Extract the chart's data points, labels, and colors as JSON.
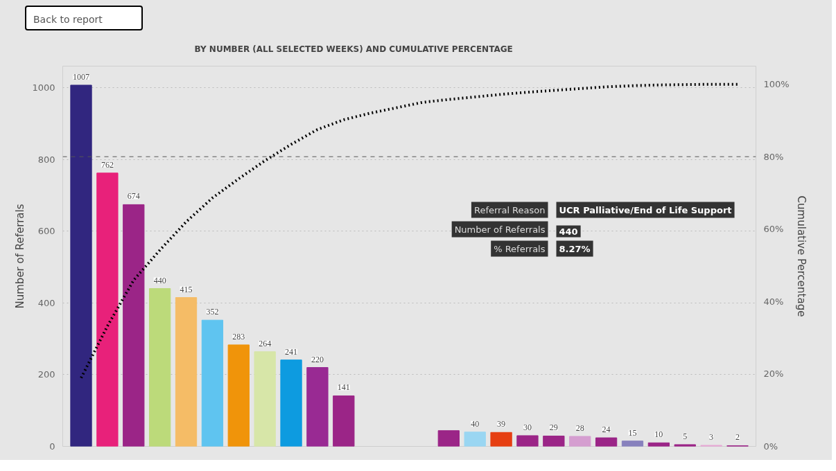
{
  "chart_data": {
    "type": "bar",
    "title": "BY NUMBER (ALL SELECTED WEEKS) AND CUMULATIVE PERCENTAGE",
    "ylabel": "Number of Referrals",
    "y2label": "Cumulative Percentage",
    "categories": [
      null,
      null,
      null,
      null,
      null,
      null,
      null,
      null,
      null,
      null,
      null,
      null,
      null,
      null,
      null,
      null,
      null,
      null,
      null,
      null,
      null,
      null,
      null,
      null,
      null,
      null
    ],
    "series": [
      {
        "colors": [
          "#31267f",
          "#e8217a",
          "#9b2587",
          "#bcda7a",
          "#f5bc66",
          "#5fc4f0",
          "#f0940a",
          "#d7e6a8",
          "#0d9be0",
          "#992a93",
          "#9b2587",
          "#9b2587",
          "#9b2587",
          "#9b2587",
          "#9b2587",
          "#9ad6f2",
          "#e63f12",
          "#9b2587",
          "#9b2587",
          "#d59ed0",
          "#9b2587",
          "#8781bd",
          "#9b2587",
          "#9b2587",
          "#e6a8d4",
          "#9b2587"
        ],
        "values": [
          1007,
          762,
          674,
          440,
          415,
          352,
          283,
          264,
          241,
          220,
          141,
          null,
          null,
          null,
          44,
          40,
          39,
          30,
          29,
          28,
          24,
          15,
          10,
          5,
          3,
          2
        ],
        "value_labels": [
          "1007",
          "762",
          "674",
          "440",
          "415",
          "352",
          "283",
          "264",
          "241",
          "220",
          "141",
          null,
          null,
          null,
          null,
          "40",
          "39",
          "30",
          "29",
          "28",
          "24",
          "15",
          "10",
          "5",
          "3",
          "2"
        ]
      },
      {
        "type": "line",
        "axis": "y2",
        "color": "#000000",
        "line_style": "dotted",
        "marker": "none",
        "values": [
          18.9,
          33.2,
          45.9,
          54.2,
          62.0,
          68.6,
          73.9,
          78.9,
          83.4,
          87.5,
          90.2,
          92.0,
          93.5,
          95.0,
          95.8,
          96.5,
          97.2,
          97.8,
          98.3,
          98.8,
          99.3,
          99.6,
          99.8,
          99.9,
          100.0,
          100.0
        ]
      }
    ],
    "ylim": [
      0,
      1060
    ],
    "yticks": [
      0,
      200,
      400,
      600,
      800,
      1000
    ],
    "y2lim": [
      0,
      105
    ],
    "y2ticks": [
      {
        "value": 0,
        "label": "0%"
      },
      {
        "value": 20,
        "label": "20%"
      },
      {
        "value": 40,
        "label": "40%"
      },
      {
        "value": 60,
        "label": "60%"
      },
      {
        "value": 80,
        "label": "80%"
      },
      {
        "value": 100,
        "label": "100%"
      }
    ],
    "ref_lines": [
      {
        "axis": "y2",
        "value": 80,
        "label": null,
        "color": "#555555",
        "line_style": "dashed"
      }
    ],
    "grid": "y",
    "annotations": [
      "Back to report",
      "Referral Reason",
      "UCR Palliative/End of Life Support",
      "Number of Referrals",
      "440",
      "% Referrals",
      "8.27%"
    ]
  }
}
